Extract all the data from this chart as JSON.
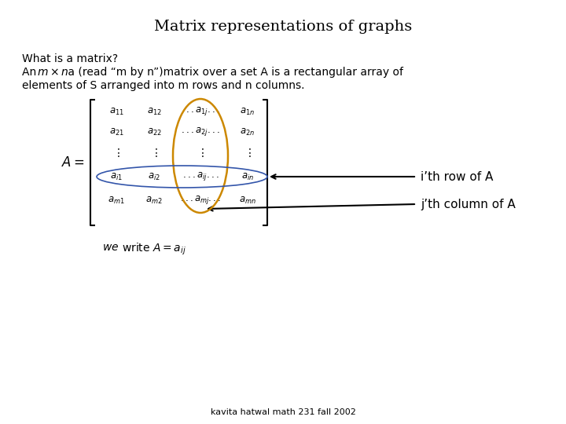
{
  "title": "Matrix representations of graphs",
  "title_fontsize": 14,
  "bg_color": "#ffffff",
  "text_color": "#000000",
  "footer": "kavita hatwal math 231 fall 2002",
  "row_label": "i’th row of A",
  "col_label": "j’th column of A",
  "orange_color": "#cc8800",
  "blue_color": "#3355aa",
  "text_fontsize": 10,
  "matrix_fontsize": 8.5,
  "label_fontsize": 11
}
